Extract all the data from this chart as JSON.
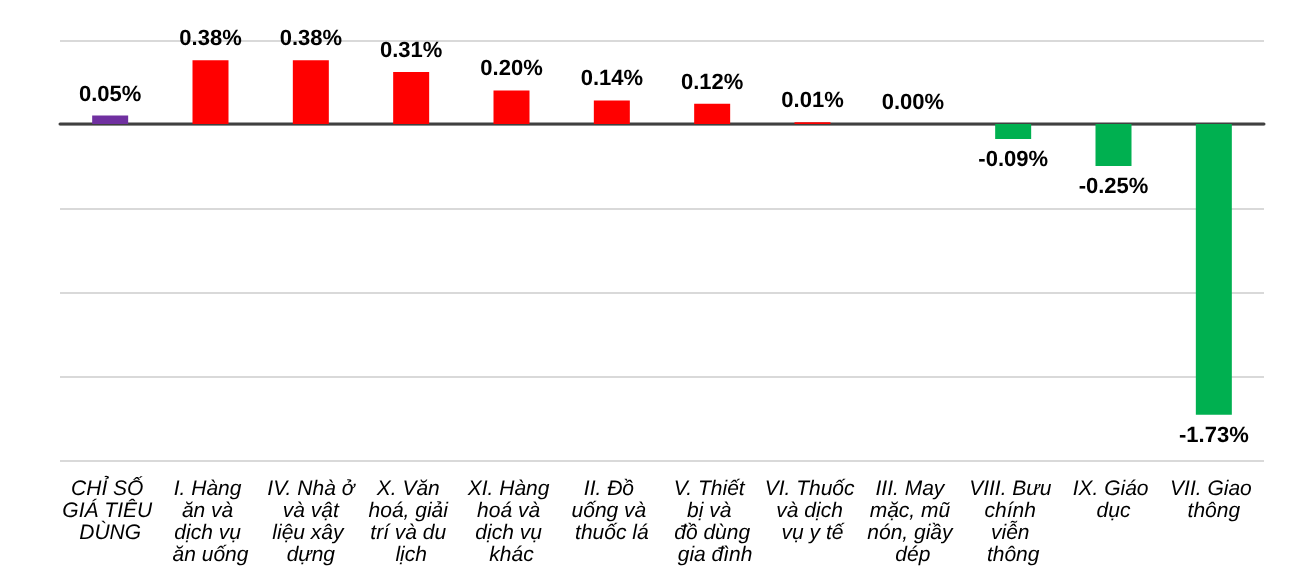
{
  "chart_data": {
    "type": "bar",
    "categories": [
      "CHỈ SỐ GIÁ TIÊU DÙNG",
      "I. Hàng ăn và dịch vụ ăn uống",
      "IV. Nhà ở và vật liệu xây dựng",
      "X. Văn hoá, giải trí và du lịch",
      "XI. Hàng hoá và dịch vụ khác",
      "II. Đồ uống và thuốc lá",
      "V. Thiết bị và đồ dùng gia đình",
      "VI. Thuốc và dịch vụ y tế",
      "III. May mặc, mũ nón, giầy dép",
      "VIII. Bưu chính viễn thông",
      "IX. Giáo dục",
      "VII. Giao thông"
    ],
    "values": [
      0.05,
      0.38,
      0.38,
      0.31,
      0.2,
      0.14,
      0.12,
      0.01,
      0.0,
      -0.09,
      -0.25,
      -1.73
    ],
    "colors": [
      "#7030a0",
      "#ff0000",
      "#ff0000",
      "#ff0000",
      "#ff0000",
      "#ff0000",
      "#ff0000",
      "#ff0000",
      "#ff0000",
      "#00b050",
      "#00b050",
      "#00b050"
    ],
    "value_labels": [
      "0.05%",
      "0.38%",
      "0.38%",
      "0.31%",
      "0.20%",
      "0.14%",
      "0.12%",
      "0.01%",
      "0.00%",
      "-0.09%",
      "-0.25%",
      "-1.73%"
    ],
    "ylim": [
      -2,
      0.5
    ],
    "yticks": [
      {
        "value": -2,
        "label": null
      },
      {
        "value": -1.5,
        "label": null
      },
      {
        "value": -1,
        "label": null
      },
      {
        "value": -0.5,
        "label": null
      },
      {
        "value": 0,
        "label": null
      },
      {
        "value": 0.5,
        "label": null
      }
    ],
    "tick_labels": "x",
    "grid": "y"
  }
}
